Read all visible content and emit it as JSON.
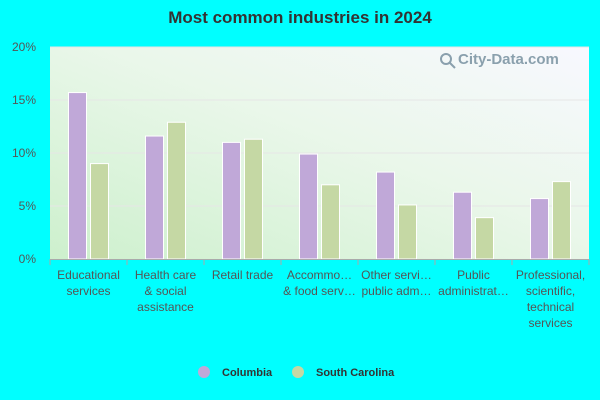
{
  "chart_data": {
    "type": "bar",
    "title": "Most common industries in 2024",
    "xlabel": "",
    "ylabel": "",
    "ylim": [
      0,
      20
    ],
    "yticks": [
      0,
      5,
      10,
      15,
      20
    ],
    "ytick_labels": [
      "0%",
      "5%",
      "10%",
      "15%",
      "20%"
    ],
    "categories": [
      [
        "Educational",
        "services"
      ],
      [
        "Health care",
        "& social",
        "assistance"
      ],
      [
        "Retail trade"
      ],
      [
        "Accommo…",
        "& food serv…"
      ],
      [
        "Other servi…",
        "public adm…"
      ],
      [
        "Public",
        "administrat…"
      ],
      [
        "Professional,",
        "scientific,",
        "technical",
        "services"
      ]
    ],
    "series": [
      {
        "name": "Columbia",
        "color": "#C0A8D8",
        "values": [
          15.7,
          11.6,
          11.0,
          9.9,
          8.2,
          6.3,
          5.7
        ]
      },
      {
        "name": "South Carolina",
        "color": "#C5D8A4",
        "values": [
          9.0,
          12.9,
          11.3,
          7.0,
          5.1,
          3.9,
          7.3
        ]
      }
    ],
    "legend_position": "bottom",
    "grid": true
  },
  "watermark": "City-Data.com",
  "colors": {
    "background": "#00FFFF",
    "axis": "#aaaaaa",
    "grid": "#e6e6e6"
  }
}
